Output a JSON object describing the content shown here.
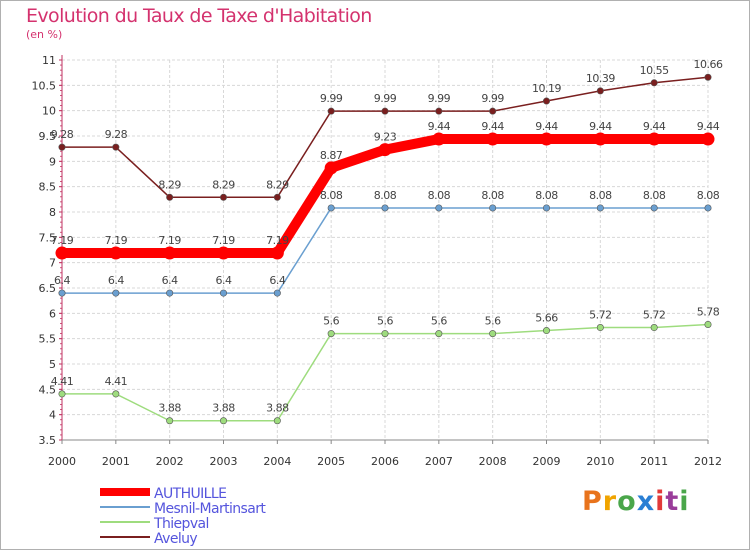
{
  "title": "Evolution du Taux de Taxe d'Habitation",
  "unit": "(en %)",
  "logo": {
    "letters": [
      "P",
      "r",
      "o",
      "x",
      "i",
      "t",
      "i"
    ],
    "colors": [
      "#e8731c",
      "#f0a400",
      "#4aa64a",
      "#2a7fd4",
      "#e23a3a",
      "#9a3c9a",
      "#4aa64a"
    ]
  },
  "chart_data": {
    "type": "line",
    "x": [
      "2000",
      "2001",
      "2002",
      "2003",
      "2004",
      "2005",
      "2006",
      "2007",
      "2008",
      "2009",
      "2010",
      "2011",
      "2012"
    ],
    "ylim": [
      3.5,
      11
    ],
    "yticks": [
      "3.5",
      "4",
      "4.5",
      "5",
      "5.5",
      "6",
      "6.5",
      "7",
      "7.5",
      "8",
      "8.5",
      "9",
      "9.5",
      "10",
      "10.5",
      "11"
    ],
    "grid": true,
    "legend_position": "bottom-left",
    "series": [
      {
        "name": "Aveluy",
        "color": "#7a1f1f",
        "values": [
          9.28,
          9.28,
          8.29,
          8.29,
          8.29,
          9.99,
          9.99,
          9.99,
          9.99,
          10.19,
          10.39,
          10.55,
          10.66
        ],
        "labels": [
          "9.28",
          "9.28",
          "8.29",
          "8.29",
          "8.29",
          "9.99",
          "9.99",
          "9.99",
          "9.99",
          "10.19",
          "10.39",
          "10.55",
          "10.66"
        ]
      },
      {
        "name": "Mesnil-Martinsart",
        "color": "#6a9fd0",
        "values": [
          6.4,
          6.4,
          6.4,
          6.4,
          6.4,
          8.08,
          8.08,
          8.08,
          8.08,
          8.08,
          8.08,
          8.08,
          8.08
        ],
        "labels": [
          "6.4",
          "6.4",
          "6.4",
          "6.4",
          "6.4",
          "8.08",
          "8.08",
          "8.08",
          "8.08",
          "8.08",
          "8.08",
          "8.08",
          "8.08"
        ]
      },
      {
        "name": "Thiepval",
        "color": "#9edc7e",
        "values": [
          4.41,
          4.41,
          3.88,
          3.88,
          3.88,
          5.6,
          5.6,
          5.6,
          5.6,
          5.66,
          5.72,
          5.72,
          5.78
        ],
        "labels": [
          "4.41",
          "4.41",
          "3.88",
          "3.88",
          "3.88",
          "5.6",
          "5.6",
          "5.6",
          "5.6",
          "5.66",
          "5.72",
          "5.72",
          "5.78"
        ]
      },
      {
        "name": "AUTHUILLE",
        "color": "#ff0000",
        "values": [
          7.19,
          7.19,
          7.19,
          7.19,
          7.19,
          8.87,
          9.23,
          9.44,
          9.44,
          9.44,
          9.44,
          9.44,
          9.44
        ],
        "labels": [
          "7.19",
          "7.19",
          "7.19",
          "7.19",
          "7.19",
          "8.87",
          "9.23",
          "9.44",
          "9.44",
          "9.44",
          "9.44",
          "9.44",
          "9.44"
        ]
      }
    ],
    "legend": [
      {
        "name": "AUTHUILLE",
        "color": "#ff0000",
        "thick": true
      },
      {
        "name": "Mesnil-Martinsart",
        "color": "#6a9fd0",
        "thick": false
      },
      {
        "name": "Thiepval",
        "color": "#9edc7e",
        "thick": false
      },
      {
        "name": "Aveluy",
        "color": "#7a1f1f",
        "thick": false
      }
    ]
  }
}
